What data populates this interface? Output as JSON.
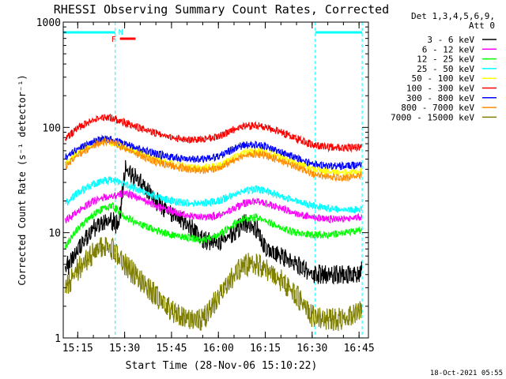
{
  "colors": {
    "background": "#ffffff",
    "axes": "#000000",
    "marker": "#00ffff",
    "flag_f": "#ff0000"
  },
  "chart_data": {
    "type": "line",
    "title": "RHESSI Observing Summary Count Rates, Corrected",
    "xlabel": "Start Time (28-Nov-06 15:10:22)",
    "ylabel": "Corrected Count Rate (s⁻¹ detector⁻¹)",
    "yscale": "log",
    "ylim": [
      1,
      1000
    ],
    "xlim": [
      "15:10:22",
      "16:48:00"
    ],
    "x_ticks": [
      "15:15",
      "15:30",
      "15:45",
      "16:00",
      "16:15",
      "16:30",
      "16:45"
    ],
    "y_ticks": [
      "1",
      "10",
      "100",
      "1000"
    ],
    "legend_header": [
      "Det 1,3,4,5,6,9,",
      "Att 0"
    ],
    "legend_position": "right",
    "timestamp": "18-Oct-2021 05:55",
    "annotations": {
      "night_label": "N",
      "flare_label": "F",
      "night_intervals": [
        [
          "15:10:22",
          "15:27:00"
        ],
        [
          "16:31:00",
          "16:46:00"
        ]
      ],
      "flare_interval": [
        "15:28:30",
        "15:33:30"
      ],
      "dashed_lines": [
        "15:10:22",
        "15:27:00",
        "16:31:00",
        "16:46:00"
      ]
    },
    "series": [
      {
        "name": "3 - 6 keV",
        "color": "#000000",
        "x": [
          "15:11",
          "15:15",
          "15:20",
          "15:23",
          "15:26",
          "15:28",
          "15:30",
          "15:35",
          "15:40",
          "15:45",
          "15:50",
          "15:55",
          "16:00",
          "16:05",
          "16:08",
          "16:12",
          "16:15",
          "16:20",
          "16:25",
          "16:30",
          "16:35",
          "16:40",
          "16:45",
          "16:46"
        ],
        "y": [
          4.5,
          7,
          11,
          12.5,
          13,
          11.5,
          40,
          30,
          20,
          15,
          12,
          8.5,
          8,
          10,
          12.5,
          11,
          7,
          6,
          5,
          4,
          4,
          4,
          4,
          5
        ]
      },
      {
        "name": "6 - 12 keV",
        "color": "#ff00ff",
        "x": [
          "15:11",
          "15:15",
          "15:20",
          "15:23",
          "15:26",
          "15:30",
          "15:35",
          "15:40",
          "15:45",
          "15:50",
          "15:55",
          "16:00",
          "16:05",
          "16:08",
          "16:12",
          "16:15",
          "16:20",
          "16:25",
          "16:30",
          "16:35",
          "16:40",
          "16:45",
          "16:46"
        ],
        "y": [
          13,
          16,
          20,
          21.5,
          22,
          24,
          21,
          18,
          16,
          14.5,
          14,
          14.5,
          17,
          19,
          20,
          19,
          17,
          15,
          14,
          13.5,
          13.5,
          14,
          14
        ]
      },
      {
        "name": "12 - 25 keV",
        "color": "#00ff00",
        "x": [
          "15:11",
          "15:15",
          "15:20",
          "15:23",
          "15:26",
          "15:30",
          "15:35",
          "15:40",
          "15:45",
          "15:50",
          "15:55",
          "16:00",
          "16:05",
          "16:08",
          "16:12",
          "16:15",
          "16:20",
          "16:25",
          "16:30",
          "16:35",
          "16:40",
          "16:45",
          "16:46"
        ],
        "y": [
          7.5,
          11,
          15,
          17,
          18,
          14,
          12,
          10.5,
          9.5,
          9,
          8.5,
          9.5,
          12,
          13.5,
          14,
          13,
          11,
          10,
          9.5,
          9.5,
          10,
          10.5,
          11
        ]
      },
      {
        "name": "25 - 50 keV",
        "color": "#00ffff",
        "x": [
          "15:11",
          "15:15",
          "15:20",
          "15:23",
          "15:26",
          "15:30",
          "15:35",
          "15:40",
          "15:45",
          "15:50",
          "15:55",
          "16:00",
          "16:05",
          "16:08",
          "16:12",
          "16:15",
          "16:20",
          "16:25",
          "16:30",
          "16:35",
          "16:40",
          "16:45",
          "16:46"
        ],
        "y": [
          19,
          24,
          29,
          31,
          32,
          29,
          25,
          22,
          20,
          19,
          19,
          20,
          23,
          25,
          26,
          25,
          22,
          20,
          18,
          17,
          16.5,
          16.5,
          17
        ]
      },
      {
        "name": "50 - 100 keV",
        "color": "#ffff00",
        "x": [
          "15:11",
          "15:15",
          "15:20",
          "15:23",
          "15:26",
          "15:30",
          "15:35",
          "15:40",
          "15:45",
          "15:50",
          "15:55",
          "16:00",
          "16:05",
          "16:08",
          "16:12",
          "16:15",
          "16:20",
          "16:25",
          "16:30",
          "16:35",
          "16:40",
          "16:45",
          "16:46"
        ],
        "y": [
          45,
          58,
          70,
          75,
          72,
          65,
          57,
          50,
          45,
          42,
          41,
          43,
          52,
          58,
          60,
          58,
          52,
          46,
          40,
          38,
          37,
          38,
          39
        ]
      },
      {
        "name": "100 - 300 keV",
        "color": "#ff0000",
        "x": [
          "15:11",
          "15:15",
          "15:20",
          "15:23",
          "15:26",
          "15:30",
          "15:35",
          "15:40",
          "15:45",
          "15:50",
          "15:55",
          "16:00",
          "16:05",
          "16:08",
          "16:12",
          "16:15",
          "16:20",
          "16:25",
          "16:30",
          "16:35",
          "16:40",
          "16:45",
          "16:46"
        ],
        "y": [
          78,
          100,
          118,
          125,
          122,
          110,
          98,
          88,
          80,
          76,
          77,
          82,
          96,
          103,
          104,
          100,
          90,
          78,
          68,
          65,
          64,
          65,
          68
        ]
      },
      {
        "name": "300 - 800 keV",
        "color": "#0000ff",
        "x": [
          "15:11",
          "15:15",
          "15:20",
          "15:23",
          "15:26",
          "15:30",
          "15:35",
          "15:40",
          "15:45",
          "15:50",
          "15:55",
          "16:00",
          "16:05",
          "16:08",
          "16:12",
          "16:15",
          "16:20",
          "16:25",
          "16:30",
          "16:35",
          "16:40",
          "16:45",
          "16:46"
        ],
        "y": [
          52,
          63,
          73,
          78,
          76,
          70,
          62,
          56,
          52,
          50,
          50,
          53,
          63,
          68,
          68,
          66,
          58,
          51,
          45,
          43,
          43,
          44,
          45
        ]
      },
      {
        "name": "800 - 7000 keV",
        "color": "#ff8c00",
        "x": [
          "15:11",
          "15:15",
          "15:20",
          "15:23",
          "15:26",
          "15:30",
          "15:35",
          "15:40",
          "15:45",
          "15:50",
          "15:55",
          "16:00",
          "16:05",
          "16:08",
          "16:12",
          "16:15",
          "16:20",
          "16:25",
          "16:30",
          "16:35",
          "16:40",
          "16:45",
          "16:46"
        ],
        "y": [
          43,
          55,
          67,
          73,
          73,
          63,
          54,
          47,
          43,
          40,
          39,
          41,
          49,
          54,
          56,
          54,
          48,
          42,
          36,
          34,
          33,
          35,
          36
        ]
      },
      {
        "name": "7000 - 15000 keV",
        "color": "#808000",
        "x": [
          "15:11",
          "15:15",
          "15:20",
          "15:23",
          "15:26",
          "15:30",
          "15:35",
          "15:40",
          "15:45",
          "15:50",
          "15:55",
          "16:00",
          "16:05",
          "16:08",
          "16:12",
          "16:15",
          "16:20",
          "16:25",
          "16:30",
          "16:35",
          "16:40",
          "16:45",
          "16:46"
        ],
        "y": [
          3,
          4.5,
          6.5,
          7.5,
          7,
          5,
          3.5,
          2.5,
          1.8,
          1.5,
          1.5,
          2.5,
          4,
          5,
          5,
          4.5,
          3.5,
          2.5,
          1.6,
          1.5,
          1.5,
          1.8,
          2
        ]
      }
    ]
  }
}
